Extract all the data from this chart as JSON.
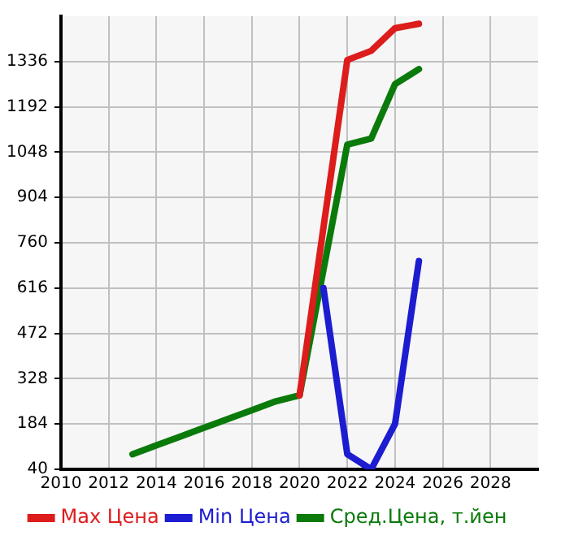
{
  "chart_data": {
    "type": "line",
    "xlim": [
      2010,
      2030
    ],
    "xticks": [
      2010,
      2012,
      2014,
      2016,
      2018,
      2020,
      2022,
      2024,
      2026,
      2028
    ],
    "ylim": [
      40,
      1480
    ],
    "yticks": [
      40,
      184,
      328,
      472,
      616,
      760,
      904,
      1048,
      1192,
      1336
    ],
    "grid": true,
    "legend": "bottom",
    "marker": "none",
    "line_style": "solid",
    "series": [
      {
        "name": "Max Цена",
        "color": "#dd1c1c",
        "x": [
          2020,
          2022,
          2023,
          2024,
          2025
        ],
        "values": [
          275,
          1341,
          1370,
          1442,
          1456
        ]
      },
      {
        "name": "Min Цена",
        "color": "#1c1cd0",
        "x": [
          2021,
          2022,
          2023,
          2024,
          2025
        ],
        "values": [
          616,
          88,
          40,
          184,
          702
        ]
      },
      {
        "name": "Сред.Цена, т.йен",
        "color": "#0a7a0a",
        "x": [
          2013,
          2014,
          2015,
          2016,
          2017,
          2018,
          2019,
          2020,
          2022,
          2023,
          2024,
          2025
        ],
        "values": [
          88,
          116,
          144,
          172,
          200,
          228,
          256,
          275,
          1072,
          1091,
          1264,
          1312
        ]
      }
    ]
  }
}
